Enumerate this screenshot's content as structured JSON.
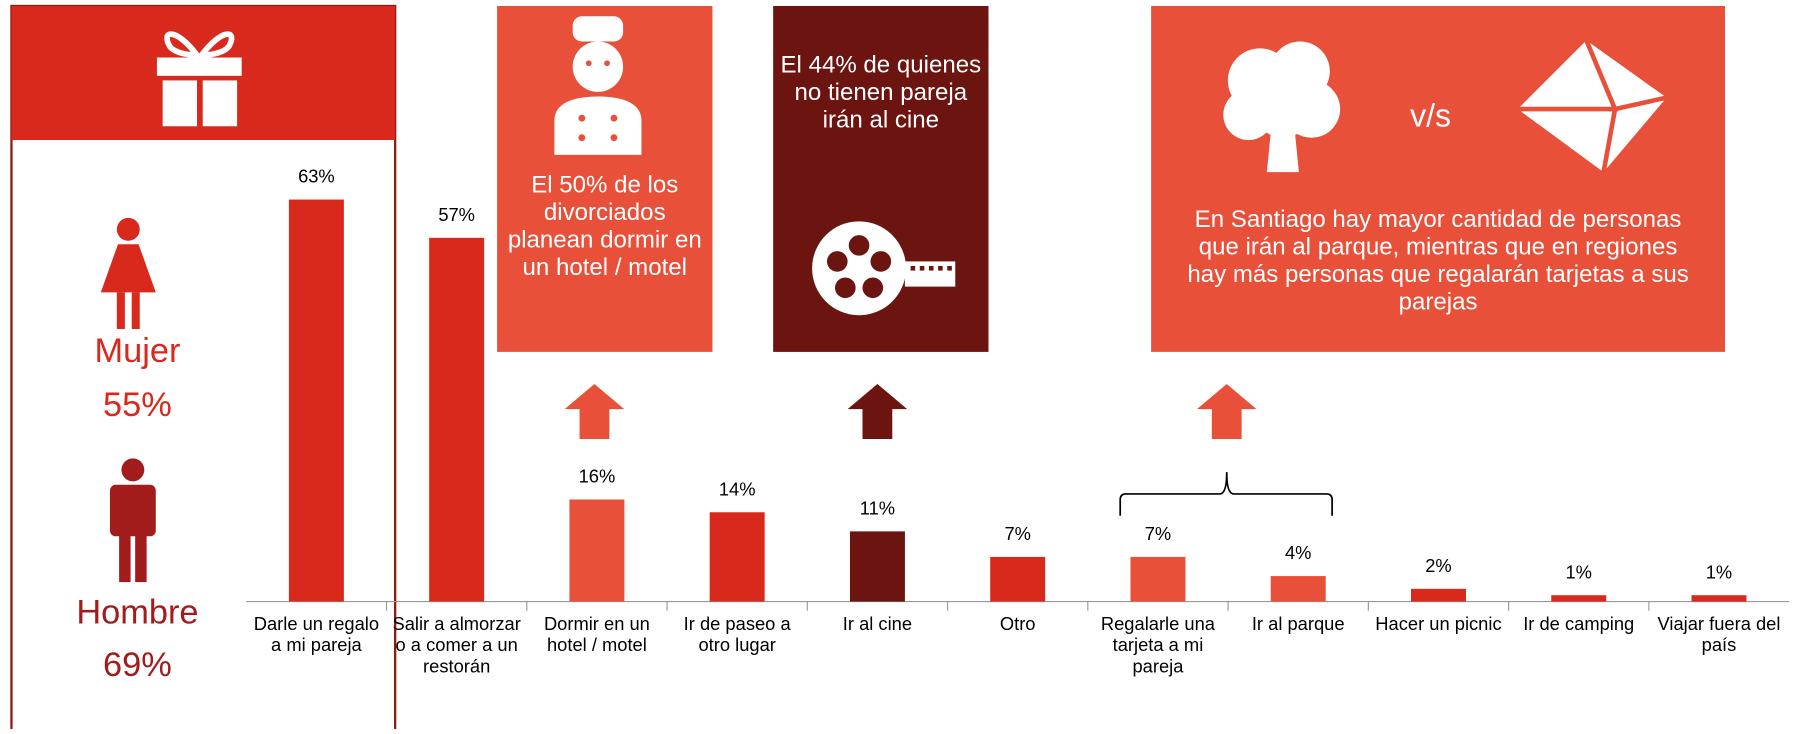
{
  "chart_data": {
    "type": "bar",
    "categories": [
      "Darle un regalo a mi pareja",
      "Salir a almorzar o a comer a un restorán",
      "Dormir en un hotel / motel",
      "Ir de paseo a otro lugar",
      "Ir al cine",
      "Otro",
      "Regalarle una tarjeta a mi pareja",
      "Ir al parque",
      "Hacer un picnic",
      "Ir de camping",
      "Viajar fuera del país"
    ],
    "values": [
      63,
      57,
      16,
      14,
      11,
      7,
      7,
      4,
      2,
      1,
      1
    ],
    "value_labels": [
      "63%",
      "57%",
      "16%",
      "14%",
      "11%",
      "7%",
      "7%",
      "4%",
      "2%",
      "1%",
      "1%"
    ],
    "colors": [
      "#d9291c",
      "#d9291c",
      "#e8503a",
      "#d9291c",
      "#6b1410",
      "#d9291c",
      "#e8503a",
      "#e8503a",
      "#d9291c",
      "#d9291c",
      "#d9291c"
    ],
    "ylim": [
      0,
      70
    ]
  },
  "gender": {
    "women_label": "Mujer",
    "women_pct": "55%",
    "men_label": "Hombre",
    "men_pct": "69%"
  },
  "callouts": {
    "hotel": "El 50% de los divorciados planean dormir en un hotel / motel",
    "cinema": "El 44% de quienes no tienen pareja irán al cine",
    "versus": "v/s",
    "park": "En Santiago hay mayor cantidad de personas que irán al parque, mientras que en regiones hay más personas que regalarán tarjetas a sus parejas"
  }
}
